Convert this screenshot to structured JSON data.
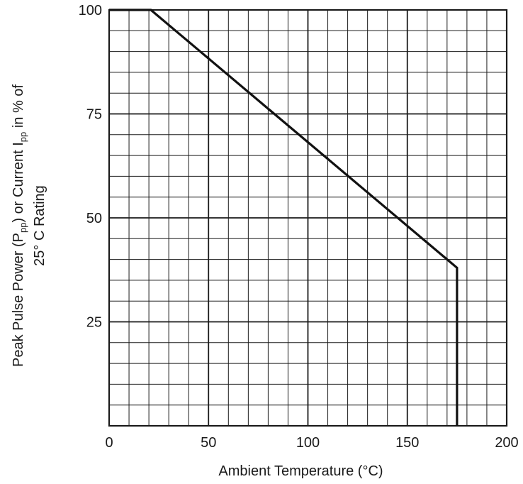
{
  "chart_data": {
    "type": "line",
    "title": "",
    "xlabel": "Ambient Temperature (°C)",
    "ylabel": {
      "line1_prefix": "Peak Pulse Power (P",
      "line1_sub1": "pp",
      "line1_mid": ") or Current I",
      "line1_sub2": "pp",
      "line1_suffix": " in % of",
      "line2": "25° C Rating"
    },
    "xlim": [
      0,
      200
    ],
    "ylim": [
      0,
      100
    ],
    "x_ticks": [
      0,
      50,
      100,
      150,
      200
    ],
    "x_tick_labels": [
      "0",
      "50",
      "100",
      "150",
      "200"
    ],
    "y_ticks": [
      25,
      50,
      75,
      100
    ],
    "y_tick_labels": [
      "25",
      "50",
      "75",
      "100"
    ],
    "x_minor_step": 10,
    "y_minor_step": 5,
    "grid": true,
    "legend": "none",
    "series": [
      {
        "x": [
          0,
          21,
          175,
          175
        ],
        "y": [
          100,
          100,
          38,
          0
        ]
      }
    ]
  }
}
